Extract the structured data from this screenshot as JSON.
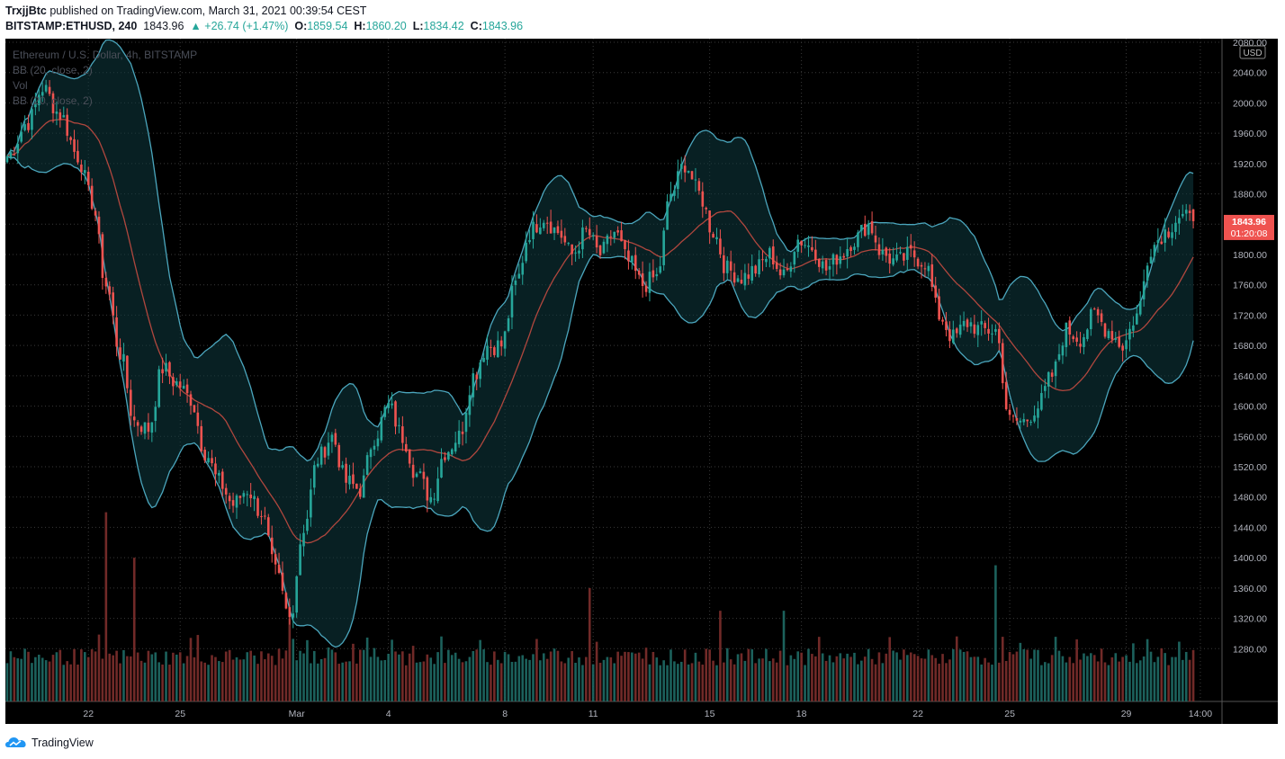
{
  "header": {
    "author": "TrxjjBtc",
    "published_text": "published on TradingView.com, March 31, 2021 00:39:54 CEST",
    "symbol": "BITSTAMP:ETHUSD, 240",
    "last": "1843.96",
    "change": "▲ +26.74 (+1.47%)",
    "o_label": "O:",
    "o_value": "1859.54",
    "h_label": "H:",
    "h_value": "1860.20",
    "l_label": "L:",
    "l_value": "1834.42",
    "c_label": "C:",
    "c_value": "1843.96"
  },
  "legend": {
    "title": "Ethereum / U.S. Dollar, 4h, BITSTAMP",
    "bb1": "BB (20, close, 2)",
    "vol": "Vol",
    "bb2": "BB (20, close, 2)"
  },
  "footer": {
    "brand": "TradingView",
    "icon": "tradingview-logo-icon"
  },
  "colors": {
    "background": "#000000",
    "up": "#26a69a",
    "down": "#ef5350",
    "band": "#4ba6bd",
    "basis": "#b0473e",
    "grid": "#3a3a3a"
  },
  "chart_data": {
    "type": "candlestick",
    "title": "Ethereum / U.S. Dollar, 4h, BITSTAMP",
    "currency_label": "USD",
    "ylim": [
      1240,
      2080
    ],
    "y_ticks": [
      "2080.00",
      "2040.00",
      "2000.00",
      "1960.00",
      "1920.00",
      "1880.00",
      "1840.00",
      "1800.00",
      "1760.00",
      "1720.00",
      "1680.00",
      "1640.00",
      "1600.00",
      "1560.00",
      "1520.00",
      "1480.00",
      "1440.00",
      "1400.00",
      "1360.00",
      "1320.00",
      "1280.00"
    ],
    "x_ticks": [
      {
        "label": "22",
        "index": 23
      },
      {
        "label": "25",
        "index": 49
      },
      {
        "label": "Mar",
        "index": 82
      },
      {
        "label": "4",
        "index": 108
      },
      {
        "label": "8",
        "index": 141
      },
      {
        "label": "11",
        "index": 166
      },
      {
        "label": "15",
        "index": 199
      },
      {
        "label": "18",
        "index": 225
      },
      {
        "label": "22",
        "index": 258
      },
      {
        "label": "25",
        "index": 284
      },
      {
        "label": "29",
        "index": 317
      },
      {
        "label": "14:00",
        "index": 338
      }
    ],
    "last_price": "1843.96",
    "countdown": "01:20:08",
    "anchors": [
      [
        0,
        1930
      ],
      [
        6,
        1975
      ],
      [
        10,
        2020
      ],
      [
        15,
        1985
      ],
      [
        20,
        1930
      ],
      [
        24,
        1870
      ],
      [
        28,
        1760
      ],
      [
        32,
        1670
      ],
      [
        36,
        1580
      ],
      [
        40,
        1570
      ],
      [
        44,
        1650
      ],
      [
        48,
        1630
      ],
      [
        52,
        1610
      ],
      [
        56,
        1540
      ],
      [
        60,
        1500
      ],
      [
        64,
        1470
      ],
      [
        68,
        1490
      ],
      [
        72,
        1460
      ],
      [
        76,
        1380
      ],
      [
        80,
        1320
      ],
      [
        84,
        1440
      ],
      [
        88,
        1530
      ],
      [
        92,
        1560
      ],
      [
        96,
        1500
      ],
      [
        100,
        1490
      ],
      [
        104,
        1560
      ],
      [
        108,
        1600
      ],
      [
        112,
        1560
      ],
      [
        116,
        1510
      ],
      [
        120,
        1480
      ],
      [
        124,
        1540
      ],
      [
        128,
        1560
      ],
      [
        132,
        1640
      ],
      [
        136,
        1680
      ],
      [
        140,
        1680
      ],
      [
        144,
        1760
      ],
      [
        148,
        1830
      ],
      [
        152,
        1850
      ],
      [
        156,
        1830
      ],
      [
        160,
        1800
      ],
      [
        164,
        1830
      ],
      [
        168,
        1800
      ],
      [
        172,
        1830
      ],
      [
        176,
        1790
      ],
      [
        180,
        1760
      ],
      [
        184,
        1770
      ],
      [
        188,
        1880
      ],
      [
        192,
        1920
      ],
      [
        196,
        1880
      ],
      [
        200,
        1830
      ],
      [
        204,
        1780
      ],
      [
        208,
        1770
      ],
      [
        212,
        1780
      ],
      [
        216,
        1800
      ],
      [
        220,
        1770
      ],
      [
        224,
        1820
      ],
      [
        228,
        1810
      ],
      [
        232,
        1780
      ],
      [
        236,
        1800
      ],
      [
        240,
        1820
      ],
      [
        244,
        1840
      ],
      [
        248,
        1800
      ],
      [
        252,
        1790
      ],
      [
        256,
        1800
      ],
      [
        260,
        1790
      ],
      [
        264,
        1720
      ],
      [
        268,
        1690
      ],
      [
        272,
        1710
      ],
      [
        276,
        1700
      ],
      [
        280,
        1700
      ],
      [
        284,
        1580
      ],
      [
        288,
        1580
      ],
      [
        292,
        1600
      ],
      [
        296,
        1640
      ],
      [
        300,
        1700
      ],
      [
        304,
        1690
      ],
      [
        308,
        1720
      ],
      [
        312,
        1700
      ],
      [
        316,
        1680
      ],
      [
        320,
        1720
      ],
      [
        324,
        1810
      ],
      [
        328,
        1830
      ],
      [
        332,
        1850
      ],
      [
        336,
        1843.96
      ]
    ],
    "volume_spikes": [
      [
        28,
        1460
      ],
      [
        36,
        1400
      ],
      [
        80,
        1320
      ],
      [
        165,
        1360
      ],
      [
        202,
        1330
      ],
      [
        220,
        1330
      ],
      [
        280,
        1390
      ]
    ]
  }
}
